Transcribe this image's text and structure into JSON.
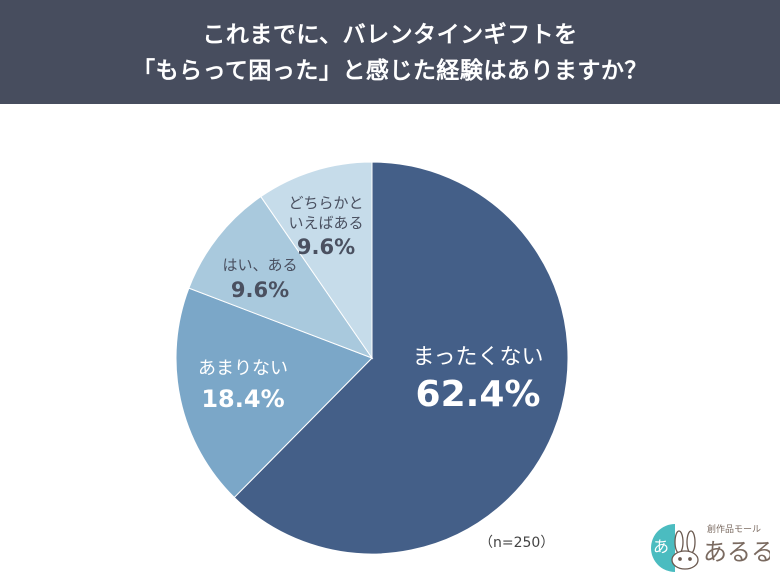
{
  "header": {
    "line1": "これまでに、バレンタインギフトを",
    "line2": "「もらって困った」と感じた経験はありますか？",
    "background": "#474d5e"
  },
  "chart_data": {
    "type": "pie",
    "title": "これまでに、バレンタインギフトを「もらって困った」と感じた経験はありますか？",
    "categories": [
      "まったくない",
      "あまりない",
      "はい、ある",
      "どちらかといえばある"
    ],
    "values": [
      62.4,
      18.4,
      9.6,
      9.6
    ],
    "unit": "%",
    "start_angle": "12 o'clock, clockwise",
    "colors": [
      "#445f88",
      "#7ba7c8",
      "#a9c9dd",
      "#c6dcea"
    ],
    "sample_size": "n=250"
  },
  "labels": [
    {
      "text": "まったくない",
      "pct": "62.4%"
    },
    {
      "text": "あまりない",
      "pct": "18.4%"
    },
    {
      "text": "はい、ある",
      "pct": "9.6%"
    },
    {
      "text_line1": "どちらかと",
      "text_line2": "いえばある",
      "pct": "9.6%"
    }
  ],
  "footnote": "（n=250）",
  "logo": {
    "tagline": "創作品モール",
    "name": "あるる",
    "badge_char": "あ"
  }
}
